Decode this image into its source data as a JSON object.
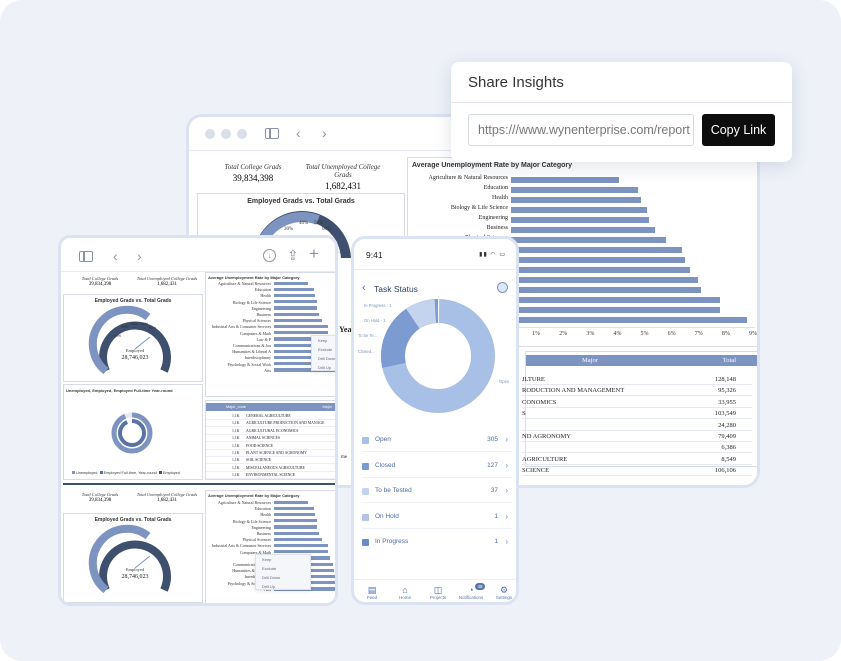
{
  "share": {
    "title": "Share Insights",
    "url": "https:///www.wynenterprise.com/report",
    "button": "Copy Link"
  },
  "desktop": {
    "kpis": [
      {
        "label": "Total College Grads",
        "value": "39,834,398"
      },
      {
        "label": "Total Unemployed College Grads",
        "value": "1,682,431"
      }
    ],
    "gauge_title": "Employed Grads vs. Total Grads",
    "gauge_ticks": [
      "30%",
      "40%",
      "50%",
      "60%"
    ],
    "bar_title": "Average Unemployment Rate by Major Category",
    "bar_categories": [
      "Agriculture & Natural Resources",
      "Education",
      "Health",
      "Biology & Life Science",
      "Engineering",
      "Business",
      "Physical Sciences"
    ],
    "bar_values": [
      0.04,
      0.047,
      0.048,
      0.05,
      0.051,
      0.053,
      0.057,
      0.063,
      0.064,
      0.066,
      0.069,
      0.07,
      0.077,
      0.077,
      0.087
    ],
    "x_ticks": [
      "1%",
      "2%",
      "3%",
      "4%",
      "5%",
      "6%",
      "7%",
      "8%",
      "9%"
    ],
    "table_headers": [
      "Major",
      "Total"
    ],
    "table_rows": [
      {
        "major": "JLTURE",
        "total": "128,148"
      },
      {
        "major": "RODUCTION AND MANAGEMENT",
        "total": "95,326"
      },
      {
        "major": "CONOMICS",
        "total": "33,955"
      },
      {
        "major": "S",
        "total": "103,549"
      },
      {
        "major": "",
        "total": "24,280"
      },
      {
        "major": "ND AGRONOMY",
        "total": "79,409"
      },
      {
        "major": "",
        "total": "6,386"
      },
      {
        "major": "AGRICULTURE",
        "total": "8,549"
      },
      {
        "major": "SCIENCE",
        "total": "106,106"
      }
    ],
    "cut_text_1": "Year",
    "cut_text_2": "me"
  },
  "tablet": {
    "kpis": [
      {
        "label": "Total College Grads",
        "value": "39,834,398"
      },
      {
        "label": "Total Unemployed College Grads",
        "value": "1,682,431"
      }
    ],
    "gauge_title": "Employed Grads vs. Total Grads",
    "gauge_center_label": "Employed",
    "gauge_center_value": "28,746,023",
    "gauge_ticks": [
      "20%",
      "30%",
      "40%",
      "50%",
      "60%",
      "70%",
      "80%",
      "90%",
      "10%",
      "0%",
      "100%"
    ],
    "bar_title": "Average Unemployment Rate by Major Category",
    "bar_categories": [
      "Agriculture & Natural Resources",
      "Education",
      "Health",
      "Biology & Life Science",
      "Engineering",
      "Business",
      "Physical Sciences",
      "Industrial Arts & Consumer Services",
      "Computers & Math",
      "Law & P",
      "Communications & Jou",
      "Humanities & Liberal A",
      "Interdisciplinary",
      "Psychology & Social Work",
      "Arts"
    ],
    "x_ticks": [
      "0%",
      "1%",
      "2%",
      "4%"
    ],
    "menu_items": [
      "Keep",
      "Exclude",
      "Drill Down",
      "Drill Up"
    ],
    "donut_title": "Unemployed, Employed, Employed Full-time Year-round",
    "donut_legend": [
      "Unemployed",
      "Employed Full-time, Year-round",
      "Employed"
    ],
    "table_headers": [
      "Major_code",
      "Major"
    ],
    "table_rows": [
      {
        "code": "1,1K",
        "major": "GENERAL AGRICULTURE"
      },
      {
        "code": "1,1K",
        "major": "AGRICULTURE PRODUCTION AND MANAGE"
      },
      {
        "code": "1,1K",
        "major": "AGRICULTURAL ECONOMICS"
      },
      {
        "code": "1,1K",
        "major": "ANIMAL SCIENCES"
      },
      {
        "code": "1,1K",
        "major": "FOOD SCIENCE"
      },
      {
        "code": "1,1K",
        "major": "PLANT SCIENCE AND AGRONOMY"
      },
      {
        "code": "1,1K",
        "major": "SOIL SCIENCE"
      },
      {
        "code": "1,1K",
        "major": "MISCELLANEOUS AGRICULTURE"
      },
      {
        "code": "1,1K",
        "major": "ENVIRONMENTAL SCIENCE"
      }
    ]
  },
  "phone": {
    "time": "9:41",
    "title": "Task Status",
    "donut_labels": [
      "In Progress - 1",
      "On Hold - 1",
      "To be Te...",
      "Closed...",
      "Open"
    ],
    "tasks": [
      {
        "label": "Open",
        "count": "305",
        "color": "#a9c0e6"
      },
      {
        "label": "Closed",
        "count": "127",
        "color": "#7c9bd1"
      },
      {
        "label": "To be Tested",
        "count": "37",
        "color": "#c5d4ee"
      },
      {
        "label": "On Hold",
        "count": "1",
        "color": "#b4c4e2"
      },
      {
        "label": "In Progress",
        "count": "1",
        "color": "#6a8ac6"
      }
    ],
    "nav": [
      {
        "label": "Feed",
        "icon": "▤"
      },
      {
        "label": "Home",
        "icon": "⌂"
      },
      {
        "label": "Projects",
        "icon": "◫"
      },
      {
        "label": "Notifications",
        "icon": "◔"
      },
      {
        "label": "Settings",
        "icon": "⚙"
      }
    ],
    "badge": "48"
  }
}
